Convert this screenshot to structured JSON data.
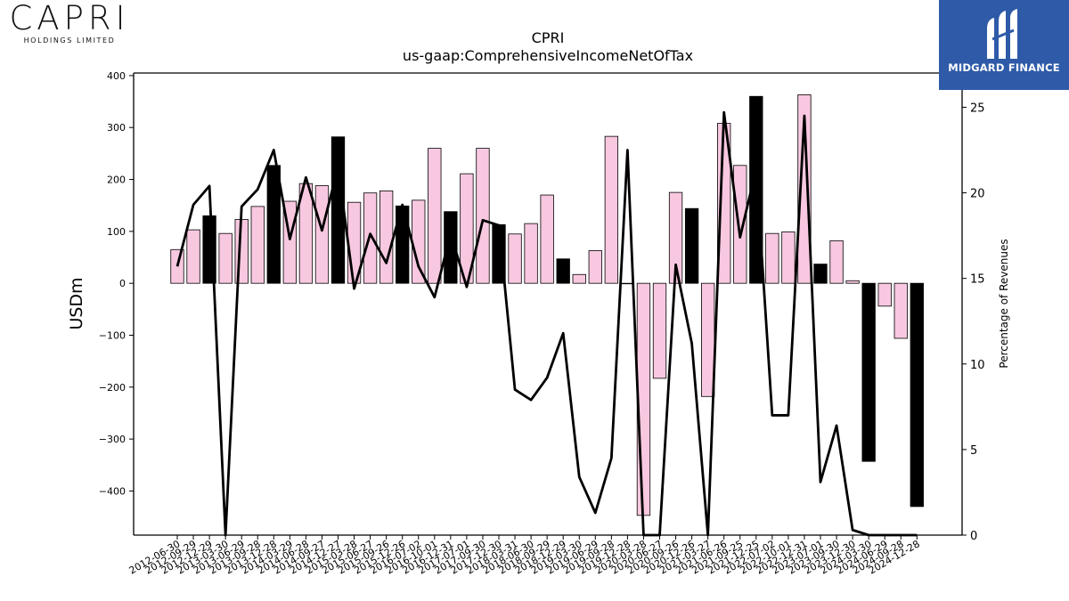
{
  "logos": {
    "left_brand": "CAPRI",
    "left_sub": "HOLDINGS LIMITED",
    "right_name": "MIDGARD FINANCE",
    "right_bg": "#2e5aa8"
  },
  "chart_data": {
    "type": "bar",
    "title": "CPRI",
    "subtitle": "us-gaap:ComprehensiveIncomeNetOfTax",
    "ylabel": "USDm",
    "y2label": "Percentage of Revenues",
    "ylim": [
      -485,
      405
    ],
    "y2lim": [
      0,
      27
    ],
    "yticks": [
      -400,
      -300,
      -200,
      -100,
      0,
      100,
      200,
      300,
      400
    ],
    "y2ticks": [
      0,
      5,
      10,
      15,
      20,
      25
    ],
    "bar_colors": {
      "quarterly": "#f8c8e0",
      "annual": "#000000"
    },
    "line_color": "#000000",
    "categories": [
      "2012-06-30",
      "2012-09-29",
      "2012-12-29",
      "2013-03-30",
      "2013-06-29",
      "2013-09-28",
      "2013-12-28",
      "2014-03-29",
      "2014-06-28",
      "2014-09-27",
      "2014-12-27",
      "2015-03-28",
      "2015-06-27",
      "2015-09-26",
      "2015-12-26",
      "2016-07-02",
      "2016-10-01",
      "2016-12-31",
      "2017-07-01",
      "2017-09-30",
      "2017-12-30",
      "2018-03-31",
      "2018-06-30",
      "2018-09-29",
      "2018-12-29",
      "2019-03-30",
      "2019-06-29",
      "2019-09-28",
      "2019-12-28",
      "2020-03-28",
      "2020-06-27",
      "2020-09-26",
      "2020-12-26",
      "2021-03-27",
      "2021-06-26",
      "2021-09-25",
      "2021-12-25",
      "2022-07-02",
      "2022-10-01",
      "2022-12-31",
      "2023-07-01",
      "2023-09-30",
      "2023-12-30",
      "2024-03-30",
      "2024-06-29",
      "2024-09-28",
      "2024-12-28"
    ],
    "series": [
      {
        "type": "bar",
        "values": [
          65,
          103,
          130,
          96,
          123,
          148,
          227,
          158,
          192,
          188,
          282,
          156,
          174,
          178,
          149,
          160,
          260,
          138,
          211,
          260,
          113,
          95,
          115,
          170,
          47,
          17,
          63,
          283,
          0,
          -447,
          -183,
          175,
          144,
          -218,
          308,
          227,
          360,
          96,
          99,
          363,
          37,
          82,
          5,
          -343,
          -44,
          -106,
          -430
        ],
        "annual": [
          false,
          false,
          true,
          false,
          false,
          false,
          true,
          false,
          false,
          false,
          true,
          false,
          false,
          false,
          true,
          false,
          false,
          true,
          false,
          false,
          true,
          false,
          false,
          false,
          true,
          false,
          false,
          false,
          true,
          false,
          false,
          false,
          true,
          false,
          false,
          false,
          true,
          false,
          false,
          false,
          true,
          false,
          false,
          true,
          false,
          false,
          true
        ]
      },
      {
        "type": "line",
        "axis": "right",
        "values": [
          15.7,
          19.3,
          20.4,
          0,
          19.2,
          20.2,
          22.5,
          17.3,
          20.9,
          17.8,
          21.5,
          14.4,
          17.6,
          15.9,
          19.3,
          15.7,
          13.9,
          17.6,
          14.5,
          18.4,
          18.1,
          8.5,
          7.9,
          9.2,
          11.8,
          3.4,
          1.3,
          4.5,
          22.5,
          0,
          0,
          15.8,
          11.2,
          0,
          24.7,
          17.4,
          21.4,
          7.0,
          7.0,
          24.5,
          3.1,
          6.4,
          0.3,
          0,
          0,
          0,
          0
        ]
      }
    ]
  }
}
